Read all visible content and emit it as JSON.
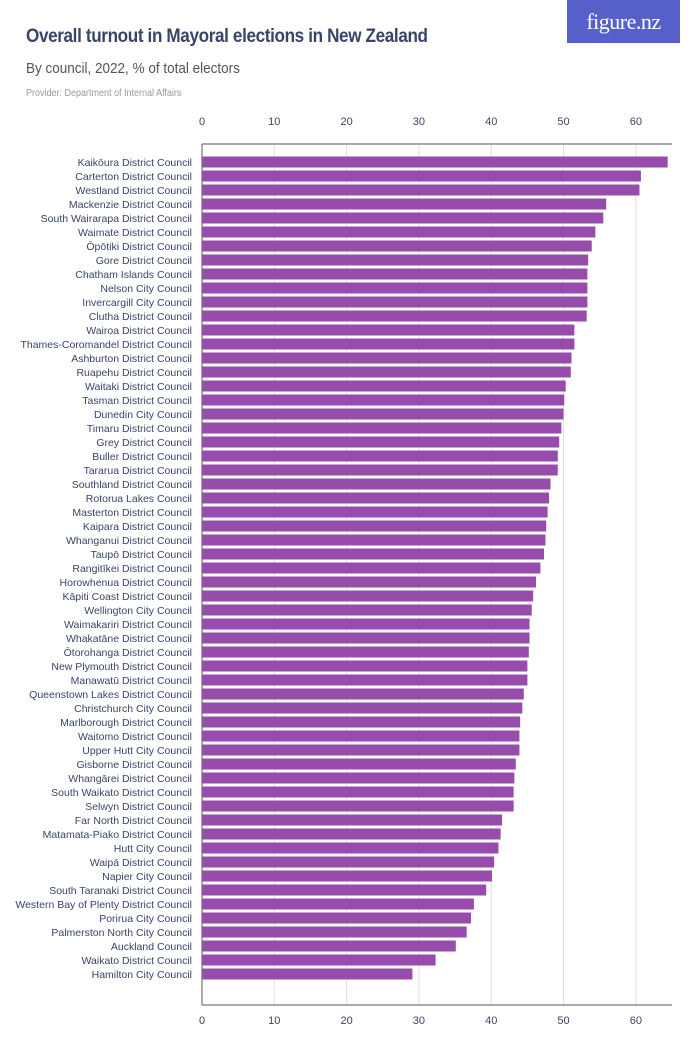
{
  "logo": "figure.nz",
  "chart_data": {
    "type": "bar",
    "orientation": "horizontal",
    "title": "Overall turnout in Mayoral elections in New Zealand",
    "subtitle": "By council, 2022, % of total electors",
    "provider": "Provider: Department of Internal Affairs",
    "xlim": [
      0,
      65
    ],
    "ticks": [
      0,
      10,
      20,
      30,
      40,
      50,
      60
    ],
    "grid": true,
    "bar_color": "#974cac",
    "categories": [
      "Kaikōura District Council",
      "Carterton District Council",
      "Westland District Council",
      "Mackenzie District Council",
      "South Wairarapa District Council",
      "Waimate District Council",
      "Ōpōtiki District Council",
      "Gore District Council",
      "Chatham Islands Council",
      "Nelson City Council",
      "Invercargill City Council",
      "Clutha District Council",
      "Wairoa District Council",
      "Thames-Coromandel District Council",
      "Ashburton District Council",
      "Ruapehu District Council",
      "Waitaki District Council",
      "Tasman District Council",
      "Dunedin City Council",
      "Timaru District Council",
      "Grey District Council",
      "Buller District Council",
      "Tararua District Council",
      "Southland District Council",
      "Rotorua Lakes Council",
      "Masterton District Council",
      "Kaipara District Council",
      "Whanganui District Council",
      "Taupō District Council",
      "Rangitīkei District Council",
      "Horowhenua District Council",
      "Kāpiti Coast District Council",
      "Wellington City Council",
      "Waimakariri District Council",
      "Whakatāne District Council",
      "Ōtorohanga District Council",
      "New Plymouth District Council",
      "Manawatū District Council",
      "Queenstown Lakes District Council",
      "Christchurch City Council",
      "Marlborough District Council",
      "Waitomo District Council",
      "Upper Hutt City Council",
      "Gisborne District Council",
      "Whangārei District Council",
      "South Waikato District Council",
      "Selwyn District Council",
      "Far North District Council",
      "Matamata-Piako District Council",
      "Hutt City Council",
      "Waipā District Council",
      "Napier City Council",
      "South Taranaki District Council",
      "Western Bay of Plenty District Council",
      "Porirua City Council",
      "Palmerston North City Council",
      "Auckland Council",
      "Waikato District Council",
      "Hamilton City Council"
    ],
    "values": [
      64.4,
      60.7,
      60.5,
      55.9,
      55.5,
      54.4,
      53.9,
      53.4,
      53.3,
      53.3,
      53.3,
      53.2,
      51.5,
      51.5,
      51.1,
      51.0,
      50.3,
      50.1,
      50.0,
      49.7,
      49.4,
      49.2,
      49.2,
      48.2,
      48.0,
      47.8,
      47.6,
      47.5,
      47.3,
      46.8,
      46.2,
      45.8,
      45.6,
      45.3,
      45.3,
      45.2,
      45.0,
      45.0,
      44.5,
      44.3,
      44.0,
      43.9,
      43.9,
      43.4,
      43.2,
      43.1,
      43.1,
      41.5,
      41.3,
      41.0,
      40.4,
      40.1,
      39.3,
      37.6,
      37.2,
      36.6,
      35.1,
      32.3,
      29.1
    ]
  }
}
